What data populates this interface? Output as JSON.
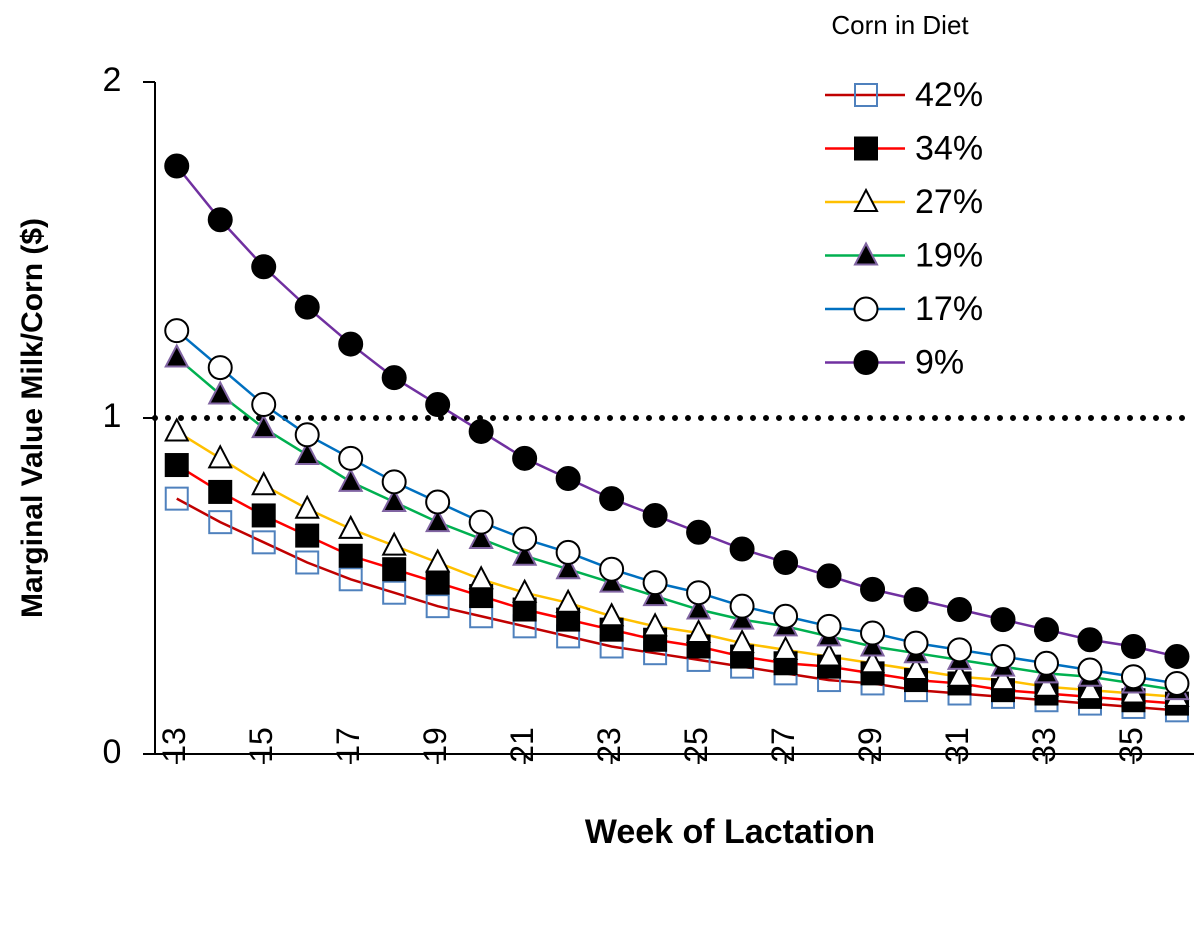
{
  "chart_data": {
    "type": "line",
    "x_label": "Week of Lactation",
    "y_label": "Marginal Value Milk/Corn ($)",
    "legend_title": "Corn in Diet",
    "legend": "top-right",
    "x": [
      13,
      14,
      15,
      16,
      17,
      18,
      19,
      20,
      21,
      22,
      23,
      24,
      25,
      26,
      27,
      28,
      29,
      30,
      31,
      32,
      33,
      34,
      35,
      36
    ],
    "xlim": [
      12.5,
      36.3
    ],
    "xticks": [
      13,
      15,
      17,
      19,
      21,
      23,
      25,
      27,
      29,
      31,
      33,
      35
    ],
    "ylim": [
      0,
      2
    ],
    "yticks": [
      0,
      1,
      2
    ],
    "reference_line": 1,
    "series": [
      {
        "name": "42%",
        "color": "#c00000",
        "marker": {
          "shape": "square",
          "fill": "none",
          "stroke": "#4f81bd"
        },
        "values": [
          0.76,
          0.69,
          0.63,
          0.57,
          0.52,
          0.48,
          0.44,
          0.41,
          0.38,
          0.35,
          0.32,
          0.3,
          0.28,
          0.26,
          0.24,
          0.22,
          0.21,
          0.19,
          0.18,
          0.17,
          0.16,
          0.15,
          0.14,
          0.13
        ]
      },
      {
        "name": "34%",
        "color": "#ff0000",
        "marker": {
          "shape": "square",
          "fill": "#000000",
          "stroke": "#000000"
        },
        "values": [
          0.86,
          0.78,
          0.71,
          0.65,
          0.59,
          0.55,
          0.51,
          0.47,
          0.43,
          0.4,
          0.37,
          0.34,
          0.32,
          0.29,
          0.27,
          0.26,
          0.24,
          0.22,
          0.21,
          0.19,
          0.18,
          0.17,
          0.16,
          0.15
        ]
      },
      {
        "name": "27%",
        "color": "#ffc000",
        "marker": {
          "shape": "triangle",
          "fill": "#ffffff",
          "stroke": "#000000"
        },
        "values": [
          0.96,
          0.88,
          0.8,
          0.73,
          0.67,
          0.62,
          0.57,
          0.52,
          0.48,
          0.45,
          0.41,
          0.38,
          0.36,
          0.33,
          0.31,
          0.29,
          0.27,
          0.25,
          0.23,
          0.22,
          0.2,
          0.19,
          0.18,
          0.17
        ]
      },
      {
        "name": "19%",
        "color": "#00b050",
        "marker": {
          "shape": "triangle",
          "fill": "#000000",
          "stroke": "#8064a2"
        },
        "values": [
          1.18,
          1.07,
          0.97,
          0.89,
          0.81,
          0.75,
          0.69,
          0.64,
          0.59,
          0.55,
          0.51,
          0.47,
          0.43,
          0.4,
          0.38,
          0.35,
          0.32,
          0.3,
          0.28,
          0.26,
          0.24,
          0.23,
          0.21,
          0.19
        ]
      },
      {
        "name": "17%",
        "color": "#0070c0",
        "marker": {
          "shape": "circle",
          "fill": "#ffffff",
          "stroke": "#000000"
        },
        "values": [
          1.26,
          1.15,
          1.04,
          0.95,
          0.88,
          0.81,
          0.75,
          0.69,
          0.64,
          0.6,
          0.55,
          0.51,
          0.48,
          0.44,
          0.41,
          0.38,
          0.36,
          0.33,
          0.31,
          0.29,
          0.27,
          0.25,
          0.23,
          0.21
        ]
      },
      {
        "name": "9%",
        "color": "#7030a0",
        "marker": {
          "shape": "circle",
          "fill": "#000000",
          "stroke": "#000000"
        },
        "values": [
          1.75,
          1.59,
          1.45,
          1.33,
          1.22,
          1.12,
          1.04,
          0.96,
          0.88,
          0.82,
          0.76,
          0.71,
          0.66,
          0.61,
          0.57,
          0.53,
          0.49,
          0.46,
          0.43,
          0.4,
          0.37,
          0.34,
          0.32,
          0.29
        ]
      }
    ]
  }
}
